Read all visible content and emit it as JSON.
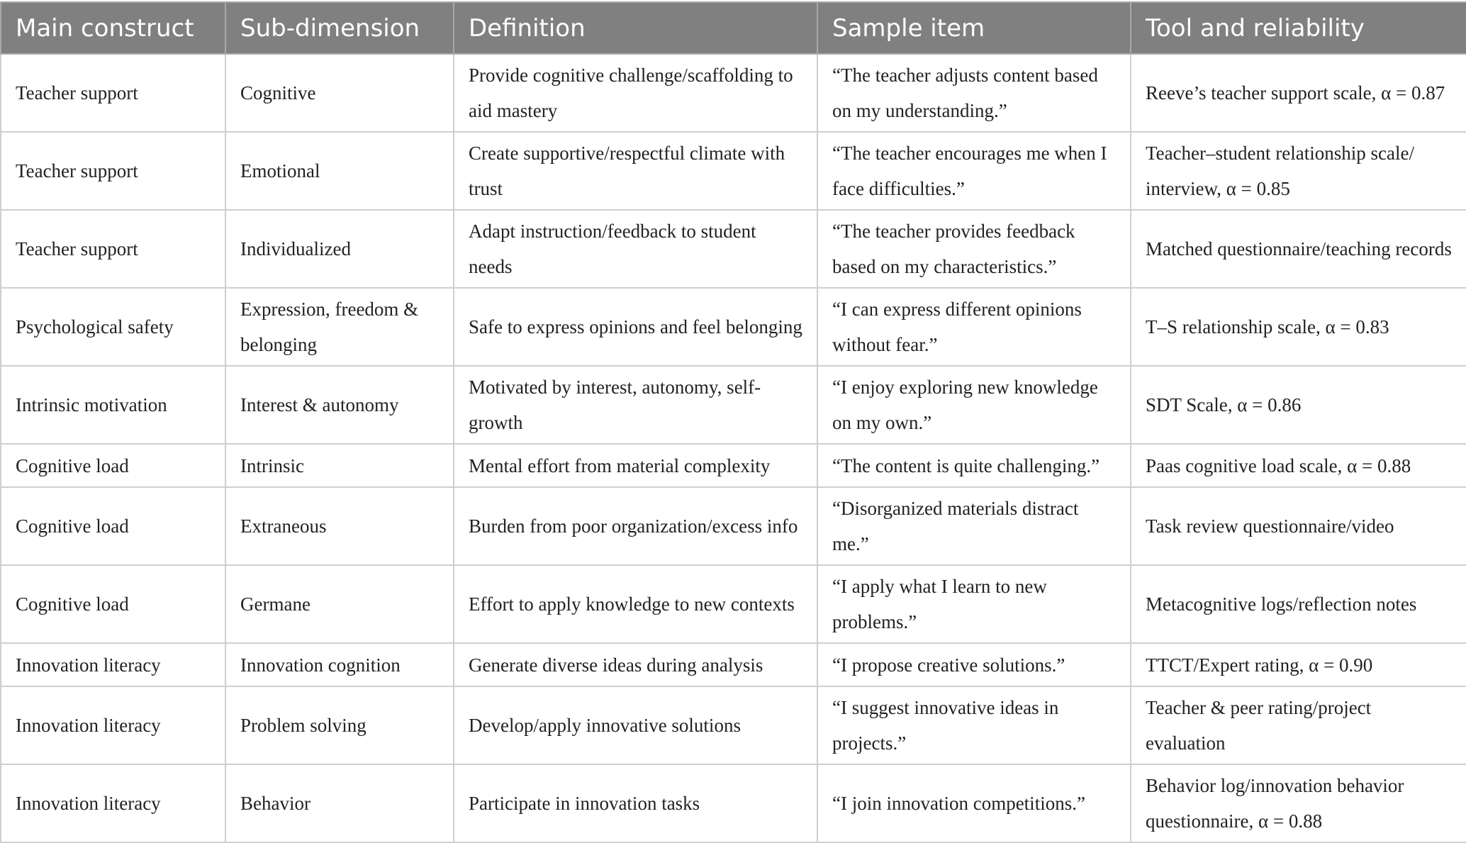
{
  "table": {
    "headers": [
      "Main construct",
      "Sub-dimension",
      "Definition",
      "Sample item",
      "Tool and reliability"
    ],
    "rows": [
      [
        "Teacher support",
        "Cognitive",
        "Provide cognitive challenge/scaffolding to aid mastery",
        "“The teacher adjusts content based on my understanding.”",
        "Reeve’s teacher support scale, α = 0.87"
      ],
      [
        "Teacher support",
        "Emotional",
        "Create supportive/respectful climate with trust",
        "“The teacher encourages me when I face difficulties.”",
        "Teacher–student relationship scale/ interview, α = 0.85"
      ],
      [
        "Teacher support",
        "Individualized",
        "Adapt instruction/feedback to student needs",
        "“The teacher provides feedback based on my characteristics.”",
        "Matched questionnaire/teaching records"
      ],
      [
        "Psychological safety",
        "Expression, freedom & belonging",
        "Safe to express opinions and feel belonging",
        "“I can express different opinions without fear.”",
        "T–S relationship scale, α = 0.83"
      ],
      [
        "Intrinsic motivation",
        "Interest & autonomy",
        "Motivated by interest, autonomy, self-growth",
        "“I enjoy exploring new knowledge on my own.”",
        "SDT Scale, α = 0.86"
      ],
      [
        "Cognitive load",
        "Intrinsic",
        "Mental effort from material complexity",
        "“The content is quite challenging.”",
        "Paas cognitive load scale, α = 0.88"
      ],
      [
        "Cognitive load",
        "Extraneous",
        "Burden from poor organization/excess info",
        "“Disorganized materials distract me.”",
        "Task review questionnaire/video"
      ],
      [
        "Cognitive load",
        "Germane",
        "Effort to apply knowledge to new contexts",
        "“I apply what I learn to new problems.”",
        "Metacognitive logs/reflection notes"
      ],
      [
        "Innovation literacy",
        "Innovation cognition",
        "Generate diverse ideas during analysis",
        "“I propose creative solutions.”",
        "TTCT/Expert rating, α = 0.90"
      ],
      [
        "Innovation literacy",
        "Problem solving",
        "Develop/apply innovative solutions",
        "“I suggest innovative ideas in projects.”",
        "Teacher & peer rating/project evaluation"
      ],
      [
        "Innovation literacy",
        "Behavior",
        "Participate in innovation tasks",
        "“I join innovation competitions.”",
        "Behavior log/innovation behavior questionnaire, α = 0.88"
      ]
    ]
  }
}
